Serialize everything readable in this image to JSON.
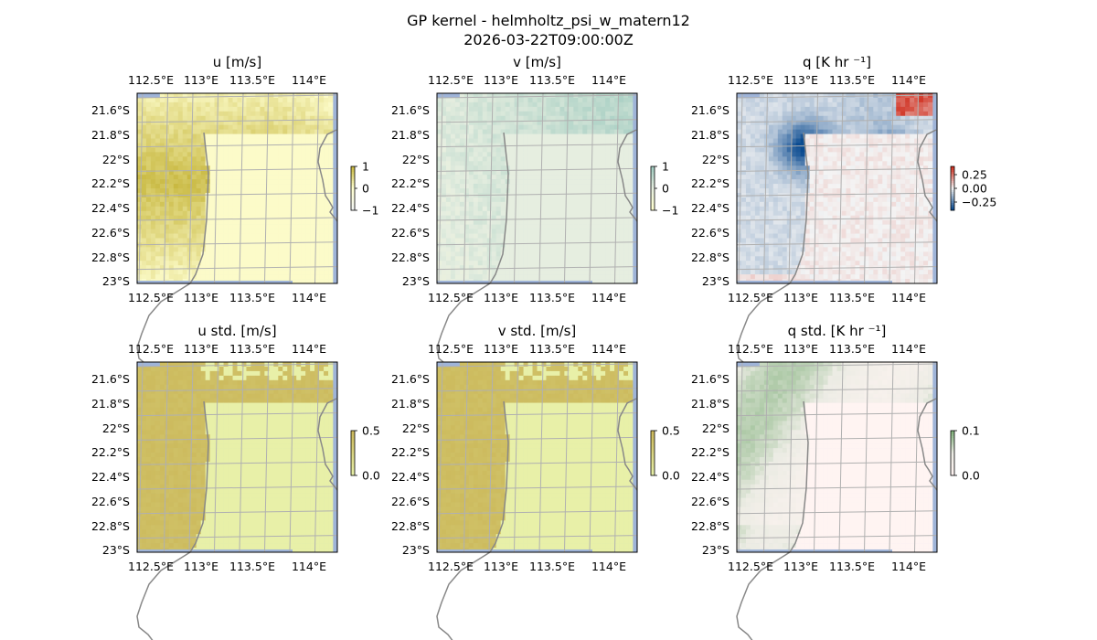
{
  "figure": {
    "title": "GP kernel - helmholtz_psi_w_matern12",
    "subtitle": "2026-03-22T09:00:00Z"
  },
  "axes": {
    "lon_ticks": [
      "112.5°E",
      "113°E",
      "113.5°E",
      "114°E"
    ],
    "lat_ticks": [
      "21.6°S",
      "21.8°S",
      "22°S",
      "22.2°S",
      "22.4°S",
      "22.6°S",
      "22.8°S",
      "23°S"
    ]
  },
  "chart_data": [
    {
      "type": "heatmap",
      "title": "u [m/s]",
      "extent": {
        "lon": [
          112.45,
          114.2
        ],
        "lat": [
          -23.0,
          -21.45
        ]
      },
      "colorbar": {
        "ticks": [
          "1",
          "0",
          "−1"
        ],
        "range": [
          -1,
          1
        ]
      },
      "colormap": [
        "#f4f6f4",
        "#ffffd0",
        "#c8b840"
      ],
      "field": "u",
      "grid": true
    },
    {
      "type": "heatmap",
      "title": "v [m/s]",
      "extent": {
        "lon": [
          112.45,
          114.2
        ],
        "lat": [
          -23.0,
          -21.45
        ]
      },
      "colorbar": {
        "ticks": [
          "1",
          "0",
          "−1"
        ],
        "range": [
          -1,
          1
        ]
      },
      "colormap": [
        "#ffffd0",
        "#e6eee0",
        "#a0cbc0"
      ],
      "field": "v",
      "grid": true
    },
    {
      "type": "heatmap",
      "title": "q [K hr ⁻¹]",
      "extent": {
        "lon": [
          112.45,
          114.2
        ],
        "lat": [
          -23.0,
          -21.45
        ]
      },
      "colorbar": {
        "ticks": [
          "0.25",
          "0.00",
          "−0.25"
        ],
        "range": [
          -0.4,
          0.4
        ]
      },
      "colormap": [
        "#0a4a90",
        "#f4f4f4",
        "#d03020"
      ],
      "field": "q",
      "grid": true
    },
    {
      "type": "heatmap",
      "title": "u std. [m/s]",
      "extent": {
        "lon": [
          112.45,
          114.2
        ],
        "lat": [
          -23.0,
          -21.45
        ]
      },
      "colorbar": {
        "ticks": [
          "0.5",
          "0.0"
        ],
        "range": [
          0,
          0.5
        ]
      },
      "colormap": [
        "#e8f0a8",
        "#cbb85a"
      ],
      "field": "ustd",
      "grid": true
    },
    {
      "type": "heatmap",
      "title": "v std. [m/s]",
      "extent": {
        "lon": [
          112.45,
          114.2
        ],
        "lat": [
          -23.0,
          -21.45
        ]
      },
      "colorbar": {
        "ticks": [
          "0.5",
          "0.0"
        ],
        "range": [
          0,
          0.5
        ]
      },
      "colormap": [
        "#e8f0a8",
        "#cbb85a"
      ],
      "field": "vstd",
      "grid": true
    },
    {
      "type": "heatmap",
      "title": "q std. [K hr ⁻¹]",
      "extent": {
        "lon": [
          112.45,
          114.2
        ],
        "lat": [
          -23.0,
          -21.45
        ]
      },
      "colorbar": {
        "ticks": [
          "0.1",
          "0.0"
        ],
        "range": [
          0,
          0.1
        ]
      },
      "colormap": [
        "#fff4f2",
        "#ecece4",
        "#7fb07a"
      ],
      "field": "qstd",
      "grid": true
    }
  ]
}
